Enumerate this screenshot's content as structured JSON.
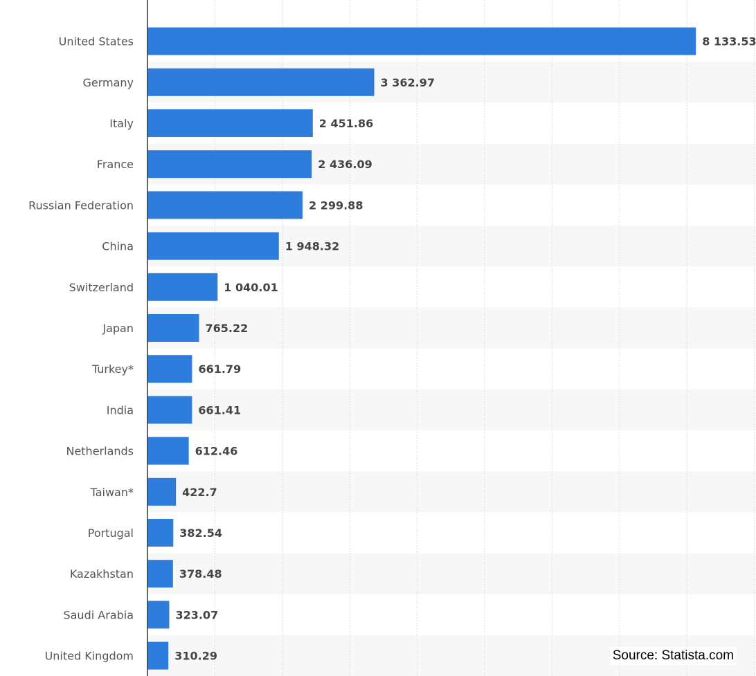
{
  "chart_data": {
    "type": "bar",
    "orientation": "horizontal",
    "categories": [
      "United States",
      "Germany",
      "Italy",
      "France",
      "Russian Federation",
      "China",
      "Switzerland",
      "Japan",
      "Turkey*",
      "India",
      "Netherlands",
      "Taiwan*",
      "Portugal",
      "Kazakhstan",
      "Saudi Arabia",
      "United Kingdom"
    ],
    "values": [
      8133.53,
      3362.97,
      2451.86,
      2436.09,
      2299.88,
      1948.32,
      1040.01,
      765.22,
      661.79,
      661.41,
      612.46,
      422.7,
      382.54,
      378.48,
      323.07,
      310.29
    ],
    "value_labels": [
      "8 133.53",
      "3 362.97",
      "2 451.86",
      "2 436.09",
      "2 299.88",
      "1 948.32",
      "1 040.01",
      "765.22",
      "661.79",
      "661.41",
      "612.46",
      "422.7",
      "382.54",
      "378.48",
      "323.07",
      "310.29"
    ],
    "title": "",
    "xlabel": "",
    "ylabel": "",
    "xlim": [
      0,
      9000
    ],
    "grid": true,
    "bar_color": "#2e7ddc",
    "row_stripe_color": "#f7f7f7",
    "source": "Source: Statista.com"
  }
}
